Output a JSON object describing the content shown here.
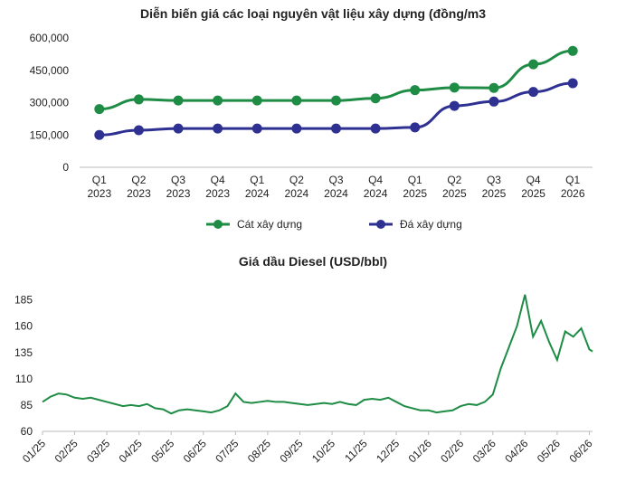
{
  "chart_data": [
    {
      "type": "line",
      "title": "Diễn biến giá các loại nguyên vật liệu xây dựng (đồng/m3",
      "categories": [
        "Q1 2023",
        "Q2 2023",
        "Q3 2023",
        "Q4 2023",
        "Q1 2024",
        "Q2 2024",
        "Q3 2024",
        "Q4 2024",
        "Q1 2025",
        "Q2 2025",
        "Q3 2025",
        "Q4 2025",
        "Q1 2026"
      ],
      "series": [
        {
          "name": "Cát xây dựng",
          "color": "#1e8c45",
          "values": [
            270000,
            315000,
            310000,
            310000,
            310000,
            310000,
            310000,
            320000,
            358000,
            370000,
            368000,
            478000,
            540000
          ]
        },
        {
          "name": "Đá xây dựng",
          "color": "#2e3192",
          "values": [
            150000,
            172000,
            180000,
            180000,
            180000,
            180000,
            180000,
            180000,
            185000,
            285000,
            305000,
            350000,
            390000
          ]
        }
      ],
      "ylim": [
        0,
        600000
      ],
      "yticks": [
        0,
        {
          "value": 150000,
          "label": "150,000"
        },
        {
          "value": 300000,
          "label": "300,000"
        },
        {
          "value": 450000,
          "label": "450,000"
        },
        {
          "value": 600000,
          "label": "600,000"
        }
      ],
      "legend": "bottom"
    },
    {
      "type": "line",
      "title": "Giá dầu Diesel (USD/bbl)",
      "x": [
        0,
        0.25,
        0.5,
        0.75,
        1,
        1.25,
        1.5,
        1.75,
        2,
        2.25,
        2.5,
        2.75,
        3,
        3.25,
        3.5,
        3.75,
        4,
        4.25,
        4.5,
        4.75,
        5,
        5.25,
        5.5,
        5.75,
        6,
        6.25,
        6.5,
        6.75,
        7,
        7.25,
        7.5,
        7.75,
        8,
        8.25,
        8.5,
        8.75,
        9,
        9.25,
        9.5,
        9.75,
        10,
        10.25,
        10.5,
        10.75,
        11,
        11.25,
        11.5,
        11.75,
        12,
        12.25,
        12.5,
        12.75,
        13,
        13.25,
        13.5,
        13.75,
        14,
        14.25,
        14.5,
        14.75,
        15,
        15.25,
        15.5,
        15.75,
        16,
        16.25,
        16.5,
        16.75,
        17,
        17.1
      ],
      "series": [
        {
          "name": "Diesel",
          "color": "#1e8c45",
          "values": [
            88,
            93,
            96,
            95,
            92,
            91,
            92,
            90,
            88,
            86,
            84,
            85,
            84,
            86,
            82,
            81,
            77,
            80,
            81,
            80,
            79,
            78,
            80,
            84,
            96,
            88,
            87,
            88,
            89,
            88,
            88,
            87,
            86,
            85,
            86,
            87,
            86,
            88,
            86,
            85,
            90,
            91,
            90,
            92,
            88,
            84,
            82,
            80,
            80,
            78,
            79,
            80,
            84,
            86,
            85,
            88,
            95,
            120,
            140,
            160,
            190,
            150,
            165,
            145,
            128,
            155,
            150,
            158,
            138,
            136
          ]
        }
      ],
      "xlim": [
        0,
        17.1
      ],
      "xticks": [
        {
          "value": 0,
          "label": "01/25"
        },
        {
          "value": 1,
          "label": "02/25"
        },
        {
          "value": 2,
          "label": "03/25"
        },
        {
          "value": 3,
          "label": "04/25"
        },
        {
          "value": 4,
          "label": "05/25"
        },
        {
          "value": 5,
          "label": "06/25"
        },
        {
          "value": 6,
          "label": "07/25"
        },
        {
          "value": 7,
          "label": "08/25"
        },
        {
          "value": 8,
          "label": "09/25"
        },
        {
          "value": 9,
          "label": "10/25"
        },
        {
          "value": 10,
          "label": "11/25"
        },
        {
          "value": 11,
          "label": "12/25"
        },
        {
          "value": 12,
          "label": "01/26"
        },
        {
          "value": 13,
          "label": "02/26"
        },
        {
          "value": 14,
          "label": "03/26"
        },
        {
          "value": 15,
          "label": "04/26"
        },
        {
          "value": 16,
          "label": "05/26"
        },
        {
          "value": 17,
          "label": "06/26"
        }
      ],
      "ylim": [
        60,
        195
      ],
      "yticks": [
        60,
        85,
        110,
        135,
        160,
        185
      ]
    }
  ]
}
